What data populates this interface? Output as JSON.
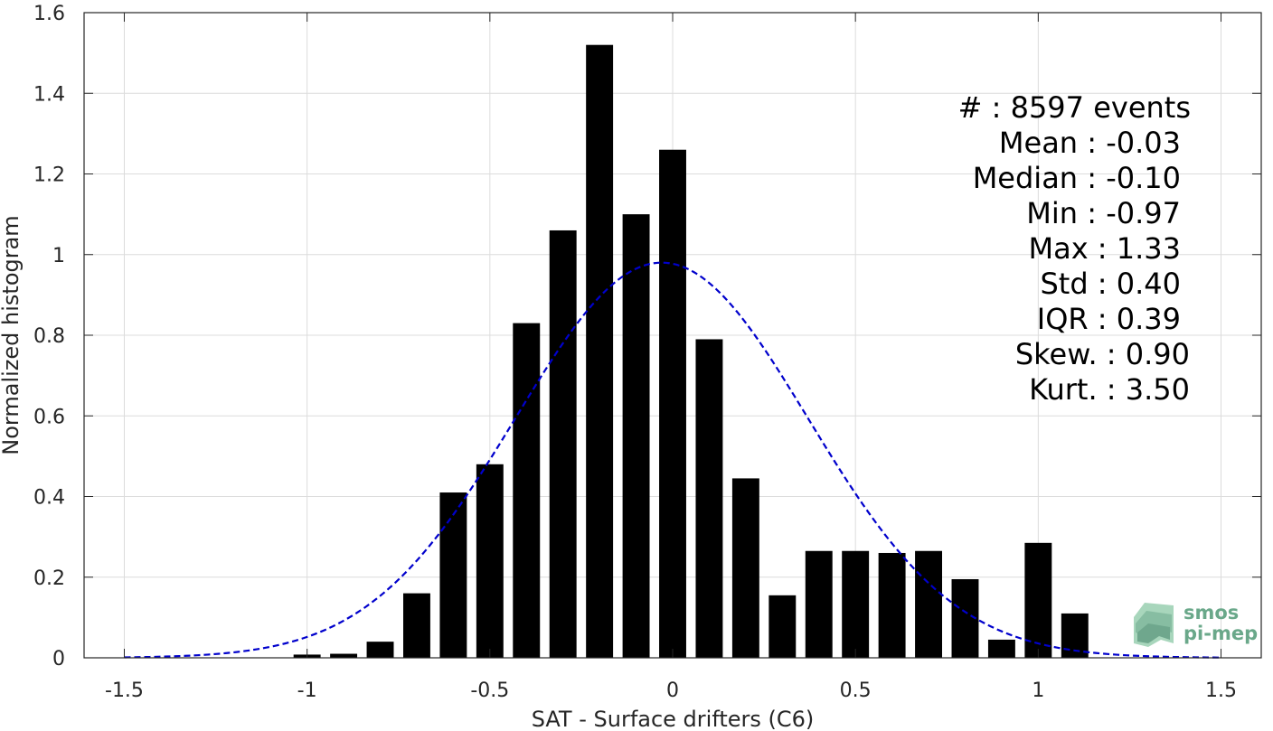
{
  "chart_data": {
    "type": "bar",
    "xlabel": "SAT - Surface drifters (C6)",
    "ylabel": "Normalized histogram",
    "xlim": [
      -1.61,
      1.61
    ],
    "ylim": [
      0,
      1.6
    ],
    "xticks": [
      -1.5,
      -1,
      -0.5,
      0,
      0.5,
      1,
      1.5
    ],
    "xtick_labels": [
      "-1.5",
      "-1",
      "-0.5",
      "0",
      "0.5",
      "1",
      "1.5"
    ],
    "yticks": [
      0,
      0.2,
      0.4,
      0.6,
      0.8,
      1,
      1.2,
      1.4,
      1.6
    ],
    "ytick_labels": [
      "0",
      "0.2",
      "0.4",
      "0.6",
      "0.8",
      "1",
      "1.2",
      "1.4",
      "1.6"
    ],
    "grid": true,
    "bin_width": 0.1,
    "bar_color": "#000000",
    "bars": [
      {
        "x": -1.0,
        "value": 0.008
      },
      {
        "x": -0.9,
        "value": 0.01
      },
      {
        "x": -0.8,
        "value": 0.04
      },
      {
        "x": -0.7,
        "value": 0.16
      },
      {
        "x": -0.6,
        "value": 0.41
      },
      {
        "x": -0.5,
        "value": 0.48
      },
      {
        "x": -0.4,
        "value": 0.83
      },
      {
        "x": -0.3,
        "value": 1.06
      },
      {
        "x": -0.2,
        "value": 1.52
      },
      {
        "x": -0.1,
        "value": 1.1
      },
      {
        "x": 0.0,
        "value": 1.26
      },
      {
        "x": 0.1,
        "value": 0.79
      },
      {
        "x": 0.2,
        "value": 0.445
      },
      {
        "x": 0.3,
        "value": 0.155
      },
      {
        "x": 0.4,
        "value": 0.265
      },
      {
        "x": 0.5,
        "value": 0.265
      },
      {
        "x": 0.6,
        "value": 0.26
      },
      {
        "x": 0.7,
        "value": 0.265
      },
      {
        "x": 0.8,
        "value": 0.195
      },
      {
        "x": 0.9,
        "value": 0.045
      },
      {
        "x": 1.0,
        "value": 0.285
      },
      {
        "x": 1.1,
        "value": 0.11
      }
    ],
    "fit_curve": {
      "type": "normal",
      "color": "#0000cc",
      "style": "dashed",
      "mean": -0.03,
      "std": 0.4,
      "peak": 0.98,
      "x_range": [
        -1.5,
        1.5
      ]
    },
    "stats": [
      "#  : 8597 events",
      "Mean : -0.03",
      "Median : -0.10",
      "Min : -0.97",
      "Max : 1.33",
      "Std : 0.40",
      "IQR : 0.39",
      "Skew. : 0.90",
      "Kurt. : 3.50"
    ],
    "logo": {
      "line1": "smos",
      "line2": "pi-mep",
      "color": "#6aa88a"
    }
  }
}
